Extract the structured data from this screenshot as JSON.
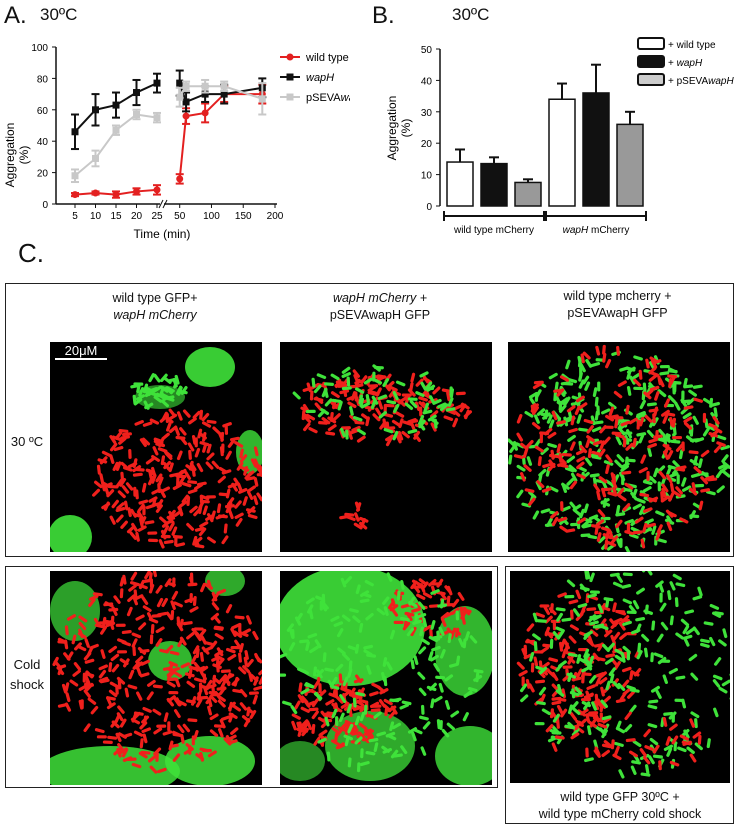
{
  "panel_a": {
    "letter": "A.",
    "title": "30ºC",
    "ylabel_line1": "Aggregation",
    "ylabel_line2": "(%)",
    "xlabel": "Time (min)",
    "legend": [
      "wild type",
      "wapH",
      "pSEVAwapH"
    ],
    "chart_data": {
      "type": "line",
      "title": "30ºC",
      "xlabel": "Time (min)",
      "ylabel": "Aggregation (%)",
      "ylim": [
        0,
        100
      ],
      "yticks": [
        0,
        20,
        40,
        60,
        80,
        100
      ],
      "x_ticks_segment1": [
        5,
        10,
        15,
        20,
        25
      ],
      "x_ticks_segment2": [
        50,
        100,
        150,
        200
      ],
      "x": [
        5,
        10,
        15,
        20,
        25,
        30,
        50,
        60,
        90,
        120,
        180
      ],
      "series": [
        {
          "name": "wild type",
          "color": "#e32020",
          "values": [
            6,
            7,
            6,
            8,
            9,
            null,
            16,
            56,
            58,
            70,
            70
          ],
          "errors": [
            1,
            1,
            2,
            2,
            3,
            null,
            3,
            5,
            6,
            5,
            6
          ]
        },
        {
          "name": "wapH",
          "color": "#111111",
          "values": [
            46,
            60,
            63,
            71,
            77,
            null,
            77,
            65,
            70,
            70,
            74
          ],
          "errors": [
            11,
            10,
            8,
            8,
            6,
            null,
            8,
            6,
            5,
            6,
            6
          ]
        },
        {
          "name": "pSEVAwapH",
          "color": "#c8c8c8",
          "values": [
            18,
            29,
            47,
            57,
            55,
            null,
            68,
            75,
            75,
            75,
            67
          ],
          "errors": [
            4,
            5,
            3,
            3,
            3,
            null,
            6,
            3,
            4,
            3,
            10
          ]
        }
      ]
    }
  },
  "panel_b": {
    "letter": "B.",
    "title": "30ºC",
    "ylabel_line1": "Aggregation",
    "ylabel_line2": "(%)",
    "legend": [
      "+ wild type",
      "+ wapH",
      "+ pSEVAwapH"
    ],
    "groups": [
      "wild type mCherry",
      "wapH mCherry"
    ],
    "chart_data": {
      "type": "bar",
      "ylabel": "Aggregation (%)",
      "ylim": [
        0,
        50
      ],
      "yticks": [
        0,
        10,
        20,
        30,
        40,
        50
      ],
      "categories": [
        "wild type mCherry",
        "wapH mCherry"
      ],
      "series": [
        {
          "name": "+ wild type",
          "color": "#ffffff",
          "values": [
            14,
            34
          ],
          "errors": [
            4,
            5
          ]
        },
        {
          "name": "+ wapH",
          "color": "#111111",
          "values": [
            13.5,
            36
          ],
          "errors": [
            2,
            9
          ]
        },
        {
          "name": "+ pSEVAwapH",
          "color": "#999999",
          "values": [
            7.5,
            26
          ],
          "errors": [
            1,
            4
          ]
        }
      ]
    }
  },
  "panel_c": {
    "letter": "C.",
    "scalebar": "20μM",
    "row_30c": "30 ºC",
    "row_cold_line1": "Cold",
    "row_cold_line2": "shock",
    "col1_line1": "wild type GFP+",
    "col1_line2": "wapH mCherry",
    "col2_line1": "wapH mCherry +",
    "col2_line2": "pSEVAwapH GFP",
    "col3_line1": "wild type mcherry +",
    "col3_line2": "pSEVAwapH GFP",
    "bottom_line1": "wild type GFP 30ºC +",
    "bottom_line2": "wild type mCherry cold shock"
  }
}
